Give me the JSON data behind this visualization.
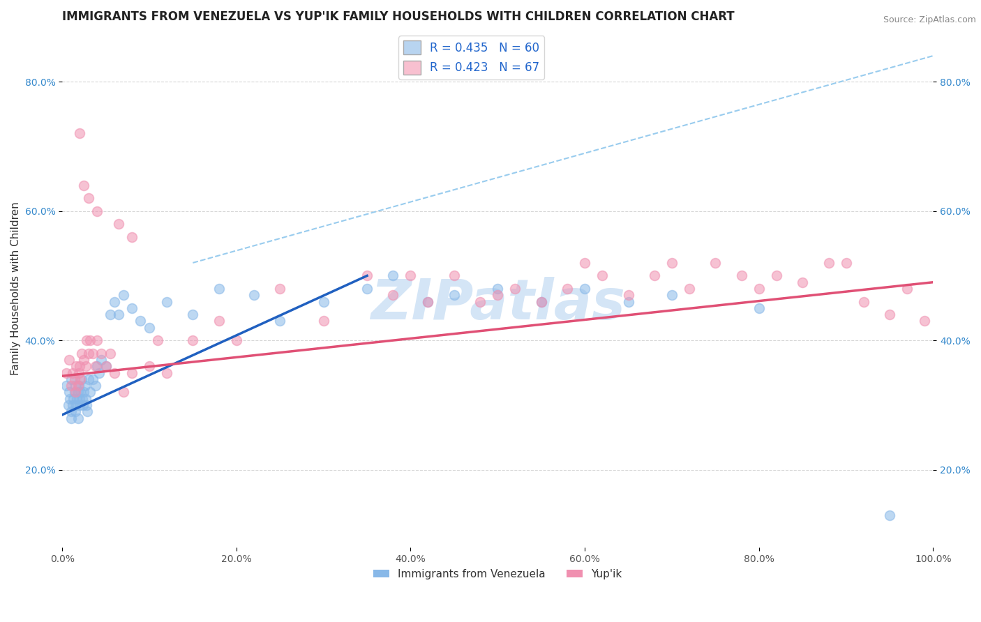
{
  "title": "IMMIGRANTS FROM VENEZUELA VS YUP'IK FAMILY HOUSEHOLDS WITH CHILDREN CORRELATION CHART",
  "source": "Source: ZipAtlas.com",
  "ylabel": "Family Households with Children",
  "legend_entries": [
    {
      "label": "R = 0.435   N = 60",
      "facecolor": "#b8d4f0",
      "edgecolor": "#aaaaaa"
    },
    {
      "label": "R = 0.423   N = 67",
      "facecolor": "#f8c0d0",
      "edgecolor": "#aaaaaa"
    }
  ],
  "legend_labels": [
    "Immigrants from Venezuela",
    "Yup'ik"
  ],
  "xlim": [
    0.0,
    1.0
  ],
  "ylim": [
    0.08,
    0.88
  ],
  "xtick_labels": [
    "0.0%",
    "20.0%",
    "40.0%",
    "60.0%",
    "80.0%",
    "100.0%"
  ],
  "xtick_vals": [
    0.0,
    0.2,
    0.4,
    0.6,
    0.8,
    1.0
  ],
  "ytick_labels": [
    "20.0%",
    "40.0%",
    "60.0%",
    "80.0%"
  ],
  "ytick_vals": [
    0.2,
    0.4,
    0.6,
    0.8
  ],
  "blue_scatter_x": [
    0.005,
    0.007,
    0.008,
    0.009,
    0.01,
    0.01,
    0.01,
    0.012,
    0.013,
    0.014,
    0.015,
    0.015,
    0.016,
    0.017,
    0.018,
    0.018,
    0.019,
    0.02,
    0.02,
    0.021,
    0.022,
    0.023,
    0.024,
    0.025,
    0.026,
    0.027,
    0.028,
    0.029,
    0.03,
    0.032,
    0.035,
    0.038,
    0.04,
    0.042,
    0.045,
    0.05,
    0.055,
    0.06,
    0.065,
    0.07,
    0.08,
    0.09,
    0.1,
    0.12,
    0.15,
    0.18,
    0.22,
    0.25,
    0.3,
    0.35,
    0.38,
    0.42,
    0.45,
    0.5,
    0.55,
    0.6,
    0.65,
    0.7,
    0.8,
    0.95
  ],
  "blue_scatter_y": [
    0.33,
    0.3,
    0.32,
    0.31,
    0.28,
    0.29,
    0.34,
    0.3,
    0.31,
    0.32,
    0.29,
    0.33,
    0.3,
    0.31,
    0.28,
    0.32,
    0.33,
    0.31,
    0.3,
    0.32,
    0.34,
    0.31,
    0.3,
    0.32,
    0.33,
    0.31,
    0.3,
    0.29,
    0.34,
    0.32,
    0.34,
    0.33,
    0.36,
    0.35,
    0.37,
    0.36,
    0.44,
    0.46,
    0.44,
    0.47,
    0.45,
    0.43,
    0.42,
    0.46,
    0.44,
    0.48,
    0.47,
    0.43,
    0.46,
    0.48,
    0.5,
    0.46,
    0.47,
    0.48,
    0.46,
    0.48,
    0.46,
    0.47,
    0.45,
    0.13
  ],
  "pink_scatter_x": [
    0.005,
    0.008,
    0.01,
    0.012,
    0.014,
    0.015,
    0.016,
    0.018,
    0.019,
    0.02,
    0.021,
    0.022,
    0.025,
    0.027,
    0.028,
    0.03,
    0.032,
    0.035,
    0.038,
    0.04,
    0.045,
    0.05,
    0.055,
    0.06,
    0.07,
    0.08,
    0.1,
    0.12,
    0.15,
    0.18,
    0.2,
    0.25,
    0.3,
    0.35,
    0.38,
    0.4,
    0.42,
    0.45,
    0.48,
    0.5,
    0.52,
    0.55,
    0.58,
    0.6,
    0.62,
    0.65,
    0.68,
    0.7,
    0.72,
    0.75,
    0.78,
    0.8,
    0.82,
    0.85,
    0.88,
    0.9,
    0.92,
    0.95,
    0.97,
    0.99,
    0.02,
    0.025,
    0.03,
    0.04,
    0.065,
    0.08,
    0.11
  ],
  "pink_scatter_y": [
    0.35,
    0.37,
    0.33,
    0.35,
    0.34,
    0.32,
    0.36,
    0.33,
    0.35,
    0.36,
    0.34,
    0.38,
    0.37,
    0.36,
    0.4,
    0.38,
    0.4,
    0.38,
    0.36,
    0.4,
    0.38,
    0.36,
    0.38,
    0.35,
    0.32,
    0.35,
    0.36,
    0.35,
    0.4,
    0.43,
    0.4,
    0.48,
    0.43,
    0.5,
    0.47,
    0.5,
    0.46,
    0.5,
    0.46,
    0.47,
    0.48,
    0.46,
    0.48,
    0.52,
    0.5,
    0.47,
    0.5,
    0.52,
    0.48,
    0.52,
    0.5,
    0.48,
    0.5,
    0.49,
    0.52,
    0.52,
    0.46,
    0.44,
    0.48,
    0.43,
    0.72,
    0.64,
    0.62,
    0.6,
    0.58,
    0.56,
    0.4
  ],
  "blue_line_x": [
    0.0,
    0.35
  ],
  "blue_line_y": [
    0.285,
    0.5
  ],
  "pink_line_x": [
    0.0,
    1.0
  ],
  "pink_line_y": [
    0.345,
    0.49
  ],
  "dashed_line_x": [
    0.15,
    1.0
  ],
  "dashed_line_y": [
    0.52,
    0.84
  ],
  "scatter_size": 100,
  "blue_color": "#88b8e8",
  "pink_color": "#f090b0",
  "blue_line_color": "#2060c0",
  "pink_line_color": "#e05075",
  "dashed_line_color": "#99ccee",
  "watermark": "ZIPatlas",
  "title_fontsize": 12,
  "label_fontsize": 11,
  "tick_fontsize": 10,
  "source_text": "Source: ZipAtlas.com"
}
